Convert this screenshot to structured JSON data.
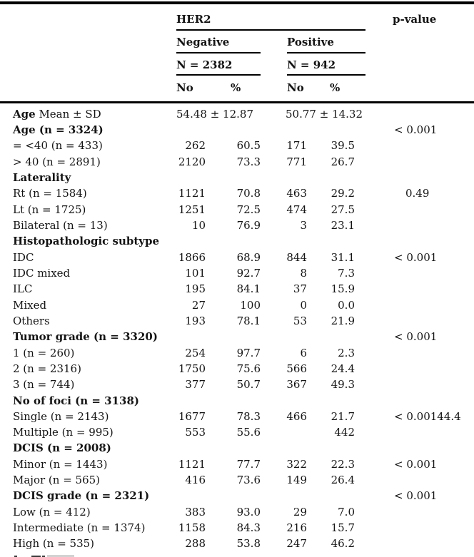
{
  "table": {
    "header": {
      "group_label": "HER2",
      "p_value_label": "p-value",
      "negative_label": "Negative",
      "positive_label": "Positive",
      "negative_n": "N = 2382",
      "positive_n": "N = 942",
      "count_label_negative": "No",
      "percent_label_negative": "%",
      "count_label_positive": "No",
      "percent_label_positive": "%"
    },
    "rows": [
      {
        "label_bold_prefix": "Age",
        "label": " Mean ± SD",
        "span_negative": "54.48 ± 12.87",
        "span_positive": "50.77 ± 14.32"
      },
      {
        "label": "Age (n = 3324)",
        "bold": true,
        "p": "< 0.001"
      },
      {
        "label": "= <40 (n = 433)",
        "cells": [
          "262",
          "60.5",
          "171",
          "39.5"
        ]
      },
      {
        "label": "> 40 (n = 2891)",
        "cells": [
          "2120",
          "73.3",
          "771",
          "26.7"
        ]
      },
      {
        "label": "Laterality",
        "bold": true
      },
      {
        "label": "Rt (n = 1584)",
        "cells": [
          "1121",
          "70.8",
          "463",
          "29.2"
        ],
        "p": "0.49",
        "p_decimal_pad": true
      },
      {
        "label": "Lt (n = 1725)",
        "cells": [
          "1251",
          "72.5",
          "474",
          "27.5"
        ]
      },
      {
        "label": "Bilateral (n = 13)",
        "cells": [
          "10",
          "76.9",
          "3",
          "23.1"
        ]
      },
      {
        "label": "Histopathologic subtype",
        "bold": true
      },
      {
        "label": "IDC",
        "cells": [
          "1866",
          "68.9",
          "844",
          "31.1"
        ],
        "p": "< 0.001"
      },
      {
        "label": "IDC mixed",
        "cells": [
          "101",
          "92.7",
          "8",
          "7.3"
        ]
      },
      {
        "label": "ILC",
        "cells": [
          "195",
          "84.1",
          "37",
          "15.9"
        ]
      },
      {
        "label": "Mixed",
        "cells": [
          "27",
          "100",
          "0",
          "0.0"
        ],
        "pct_negative_decimal_pad": true
      },
      {
        "label": "Others",
        "cells": [
          "193",
          "78.1",
          "53",
          "21.9"
        ]
      },
      {
        "label": "Tumor grade (n = 3320)",
        "bold": true,
        "p": "< 0.001"
      },
      {
        "label": "1 (n = 260)",
        "cells": [
          "254",
          "97.7",
          "6",
          "2.3"
        ]
      },
      {
        "label": "2 (n = 2316)",
        "cells": [
          "1750",
          "75.6",
          "566",
          "24.4"
        ]
      },
      {
        "label": "3 (n = 744)",
        "cells": [
          "377",
          "50.7",
          "367",
          "49.3"
        ]
      },
      {
        "label": "No of foci (n = 3138)",
        "bold": true
      },
      {
        "label": "Single (n = 2143)",
        "cells": [
          "1677",
          "78.3",
          "466",
          "21.7"
        ],
        "p": "< 0.00144.4"
      },
      {
        "label": "Multiple (n = 995)",
        "cells": [
          "553",
          "55.6",
          "",
          "442"
        ]
      },
      {
        "label": "DCIS (n = 2008)",
        "bold": true
      },
      {
        "label": "Minor (n = 1443)",
        "cells": [
          "1121",
          "77.7",
          "322",
          "22.3"
        ],
        "p": "< 0.001"
      },
      {
        "label": "Major (n = 565)",
        "cells": [
          "416",
          "73.6",
          "149",
          "26.4"
        ]
      },
      {
        "label": "DCIS grade (n = 2321)",
        "bold": true,
        "p": "< 0.001"
      },
      {
        "label": "Low (n = 412)",
        "cells": [
          "383",
          "93.0",
          "29",
          "7.0"
        ]
      },
      {
        "label": "Intermediate (n = 1374)",
        "cells": [
          "1158",
          "84.3",
          "216",
          "15.7"
        ]
      },
      {
        "label": "High (n = 535)",
        "cells": [
          "288",
          "53.8",
          "247",
          "46.2"
        ]
      }
    ]
  },
  "colors": {
    "text": "#141414",
    "rule": "#000000",
    "clipped_fragment_dark": "#3a3a3a",
    "clipped_fragment_highlight": "#d2d2d2"
  }
}
